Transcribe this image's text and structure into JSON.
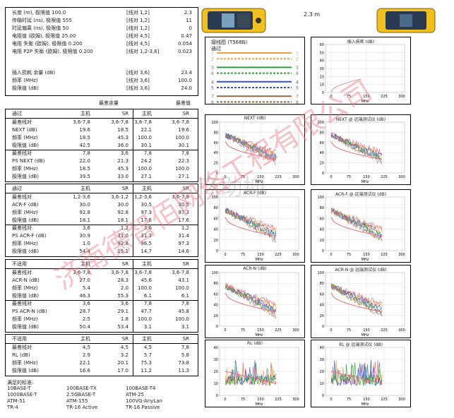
{
  "summary": [
    {
      "label": "长度 (m), 极限值 100.0",
      "pair": "[线对 1,2]",
      "value": "2.3"
    },
    {
      "label": "传输时延 (ns), 极限值 555",
      "pair": "[线对 1,2]",
      "value": "11"
    },
    {
      "label": "时延偏离 (ns), 极限值 50",
      "pair": "[线对 1,2]",
      "value": "0"
    },
    {
      "label": "电阻值 (欧姆), 极限值 25.00",
      "pair": "[线对 4,5]",
      "value": "0.47"
    },
    {
      "label": "电阻 失衡 (欧姆), 极限值 0.200",
      "pair": "[线对 4,5]",
      "value": "0.054"
    },
    {
      "label": "电阻 P2P 失衡 (欧姆), 极限值 0.200",
      "pair": "[线对 1,2-3,6]",
      "value": "0.023"
    }
  ],
  "insertion": [
    {
      "label": "插入损耗 余量 (dB)",
      "pair": "[线对 3,6]",
      "value": "23.4"
    },
    {
      "label": "频率 (MHz)",
      "pair": "[线对 3,6]",
      "value": "100.0"
    },
    {
      "label": "极限值 (dB)",
      "pair": "[线对 3,6]",
      "value": "24.0"
    }
  ],
  "length_display": "2.3 m",
  "margin_headers": {
    "worst_margin": "最差余量",
    "worst_value": "最差值"
  },
  "sections": [
    {
      "status": "通过",
      "cols": [
        "主机",
        "SR",
        "主机",
        "SR"
      ],
      "rows": [
        {
          "label": "最差线对",
          "v": [
            "3,6-7,8",
            "3,6-7,8",
            "3,6-7,8",
            "3,6-7,8"
          ]
        },
        {
          "label": "NEXT (dB)",
          "v": [
            "19.6",
            "18.5",
            "22.1",
            "19.6"
          ]
        },
        {
          "label": "频率 (MHz)",
          "v": [
            "18.5",
            "45.3",
            "100.0",
            "100.0"
          ]
        },
        {
          "label": "极限值 (dB)",
          "v": [
            "42.5",
            "36.0",
            "30.1",
            "30.1"
          ]
        },
        {
          "label": "最差线对",
          "v": [
            "7,8",
            "3,6",
            "7,8",
            "7,8"
          ],
          "sep": true
        },
        {
          "label": "PS NEXT (dB)",
          "v": [
            "22.0",
            "21.3",
            "24.2",
            "22.3"
          ]
        },
        {
          "label": "频率 (MHz)",
          "v": [
            "18.5",
            "45.3",
            "100.0",
            "100.0"
          ]
        },
        {
          "label": "极限值 (dB)",
          "v": [
            "39.5",
            "33.0",
            "27.1",
            "27.1"
          ]
        }
      ]
    },
    {
      "status": "通过",
      "cols": [
        "主机",
        "SR",
        "主机",
        "SR"
      ],
      "rows": [
        {
          "label": "最差线对",
          "v": [
            "1,2-3,6",
            "3,6-1,2",
            "1,2-3,6",
            "3,6-7,8"
          ]
        },
        {
          "label": "ACR-F (dB)",
          "v": [
            "30.0",
            "30.0",
            "30.5",
            "30.5"
          ]
        },
        {
          "label": "频率 (MHz)",
          "v": [
            "92.8",
            "92.8",
            "97.3",
            "97.3"
          ]
        },
        {
          "label": "极限值 (dB)",
          "v": [
            "18.1",
            "18.1",
            "17.6",
            "17.6"
          ]
        },
        {
          "label": "最差线对",
          "v": [
            "3,6",
            "1,2",
            "3,6",
            "1,2"
          ],
          "sep": true
        },
        {
          "label": "PS ACR-F (dB)",
          "v": [
            "30.9",
            "31.0",
            "31.3",
            "31.4"
          ]
        },
        {
          "label": "频率 (MHz)",
          "v": [
            "1.0",
            "92.8",
            "96.5",
            "97.3"
          ]
        },
        {
          "label": "极限值 (dB)",
          "v": [
            "54.4",
            "15.1",
            "14.7",
            "14.6"
          ]
        }
      ]
    },
    {
      "status": "不适用",
      "cols": [
        "主机",
        "SR",
        "主机",
        "SR"
      ],
      "rows": [
        {
          "label": "最差线对",
          "v": [
            "3,6-7,8",
            "3,6-7,8",
            "3,6-7,8",
            "3,6-7,8"
          ]
        },
        {
          "label": "ACR-N (dB)",
          "v": [
            "27.0",
            "28.3",
            "45.6",
            "43.1"
          ]
        },
        {
          "label": "频率 (MHz)",
          "v": [
            "5.4",
            "2.0",
            "100.0",
            "100.0"
          ]
        },
        {
          "label": "极限值 (dB)",
          "v": [
            "46.3",
            "55.3",
            "6.1",
            "6.1"
          ]
        },
        {
          "label": "最差线对",
          "v": [
            "3,6",
            "3,6",
            "7,8",
            "7,8"
          ],
          "sep": true
        },
        {
          "label": "PS ACR-N (dB)",
          "v": [
            "28.7",
            "29.1",
            "47.7",
            "45.8"
          ]
        },
        {
          "label": "频率 (MHz)",
          "v": [
            "2.5",
            "1.8",
            "100.0",
            "100.0"
          ]
        },
        {
          "label": "极限值 (dB)",
          "v": [
            "50.4",
            "53.4",
            "3.1",
            "3.1"
          ]
        }
      ]
    },
    {
      "status": "不适用",
      "cols": [
        "主机",
        "SR",
        "主机",
        "SR"
      ],
      "rows": [
        {
          "label": "最差线对",
          "v": [
            "4,5",
            "4,5",
            "4,5",
            "7,8"
          ]
        },
        {
          "label": "RL (dB)",
          "v": [
            "2.9",
            "3.2",
            "5.7",
            "5.8"
          ]
        },
        {
          "label": "频率 (MHz)",
          "v": [
            "22.1",
            "20.1",
            "75.3",
            "73.8"
          ]
        },
        {
          "label": "极限值 (dB)",
          "v": [
            "16.6",
            "17.0",
            "11.2",
            "11.3"
          ]
        }
      ]
    }
  ],
  "standards_title": "满足的标准:",
  "standards": [
    [
      "10BASE-T",
      "100BASE-TX",
      "100BASE-T4"
    ],
    [
      "1000BASE-T",
      "2.5GBASE-T",
      "ATM-25"
    ],
    [
      "ATM-51",
      "ATM-155",
      "100VG-AnyLan"
    ],
    [
      "TR-4",
      "TR-16 Active",
      "TR-16 Passive"
    ]
  ],
  "wiremap": {
    "title": "接线图 (T568B)",
    "status": "通过",
    "pins": [
      "1",
      "2",
      "3",
      "6",
      "4",
      "5",
      "7",
      "8",
      "S"
    ],
    "colors": [
      "#f0a040",
      "#f0a040",
      "#2a9d3a",
      "#2a9d3a",
      "#3050d0",
      "#3050d0",
      "#8a6a40",
      "#8a6a40",
      "#555555"
    ]
  },
  "charts": {
    "insertion_loss": {
      "title": "插入损耗 (dB)",
      "yticks": [
        "60",
        "50",
        "40",
        "30",
        "20",
        "10",
        "0"
      ],
      "xticks": [
        "0",
        "75",
        "150",
        "225",
        "300"
      ],
      "xlabel": "MHz"
    },
    "next": {
      "title": "NEXT (dB)",
      "yticks": [
        "100",
        "80",
        "60",
        "40",
        "20",
        "0"
      ],
      "xticks": [
        "0",
        "75",
        "150",
        "225",
        "300"
      ],
      "xlabel": "MHz"
    },
    "next_remote": {
      "title": "NEXT @ 远端测试仪 (dB)",
      "yticks": [
        "100",
        "80",
        "60",
        "40",
        "20",
        "0"
      ],
      "xticks": [
        "0",
        "75",
        "150",
        "225",
        "300"
      ],
      "xlabel": "MHz"
    },
    "acrf": {
      "title": "ACR-F (dB)",
      "yticks": [
        "100",
        "80",
        "60",
        "40",
        "20",
        "0"
      ],
      "xticks": [
        "0",
        "75",
        "150",
        "225",
        "300"
      ],
      "xlabel": "MHz"
    },
    "acrf_remote": {
      "title": "ACR-F @ 远端测试仪 (dB)",
      "yticks": [
        "100",
        "80",
        "60",
        "40",
        "20",
        "0"
      ],
      "xticks": [
        "0",
        "75",
        "150",
        "225",
        "300"
      ],
      "xlabel": "MHz"
    },
    "acrn": {
      "title": "ACR-N (dB)",
      "yticks": [
        "100",
        "80",
        "60",
        "40",
        "20",
        "0"
      ],
      "xticks": [
        "0",
        "75",
        "150",
        "225",
        "300"
      ],
      "xlabel": "MHz"
    },
    "acrn_remote": {
      "title": "ACR-N @ 远端测试仪 (dB)",
      "yticks": [
        "100",
        "80",
        "60",
        "40",
        "20",
        "0"
      ],
      "xticks": [
        "0",
        "75",
        "150",
        "225",
        "300"
      ],
      "xlabel": "MHz"
    },
    "rl": {
      "title": "RL (dB)",
      "yticks": [
        "40",
        "30",
        "20",
        "10",
        "0"
      ],
      "xticks": [
        "0",
        "75",
        "150",
        "225",
        "300"
      ],
      "xlabel": "MHz"
    },
    "rl_remote": {
      "title": "RL @ 远端测试仪 (dB)",
      "yticks": [
        "40",
        "30",
        "20",
        "10",
        "0"
      ],
      "xticks": [
        "0",
        "75",
        "150",
        "225",
        "300"
      ],
      "xlabel": "MHz"
    }
  },
  "watermark": "济南德智佰网络工程有限公司",
  "watermark2": "商助坤"
}
